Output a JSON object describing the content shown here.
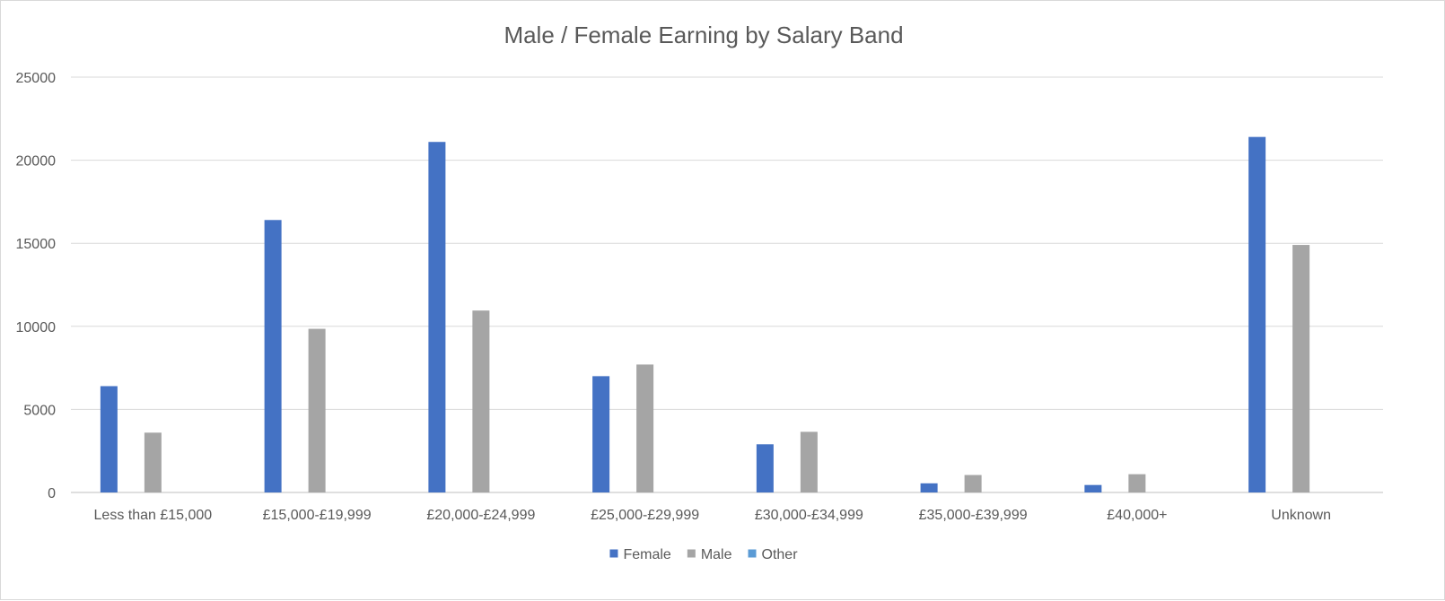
{
  "chart_data": {
    "type": "bar",
    "title": "Male / Female Earning by Salary Band",
    "xlabel": "",
    "ylabel": "",
    "ylim": [
      0,
      25000
    ],
    "yticks": [
      0,
      5000,
      10000,
      15000,
      20000,
      25000
    ],
    "ytick_labels": [
      "0",
      "5000",
      "10000",
      "15000",
      "20000",
      "25000"
    ],
    "grid": true,
    "legend_position": "bottom",
    "categories": [
      "Less than £15,000",
      "£15,000-£19,999",
      "£20,000-£24,999",
      "£25,000-£29,999",
      "£30,000-£34,999",
      "£35,000-£39,999",
      "£40,000+",
      "Unknown"
    ],
    "series": [
      {
        "name": "Female",
        "color": "#4472c4",
        "values": [
          6400,
          16400,
          21100,
          7000,
          2900,
          550,
          450,
          21400
        ]
      },
      {
        "name": "Male",
        "color": "#a5a5a5",
        "values": [
          3600,
          9850,
          10950,
          7700,
          3650,
          1050,
          1100,
          14900
        ]
      },
      {
        "name": "Other",
        "color": "#5b9bd5",
        "values": [
          0,
          0,
          0,
          0,
          0,
          0,
          0,
          0
        ]
      }
    ]
  }
}
